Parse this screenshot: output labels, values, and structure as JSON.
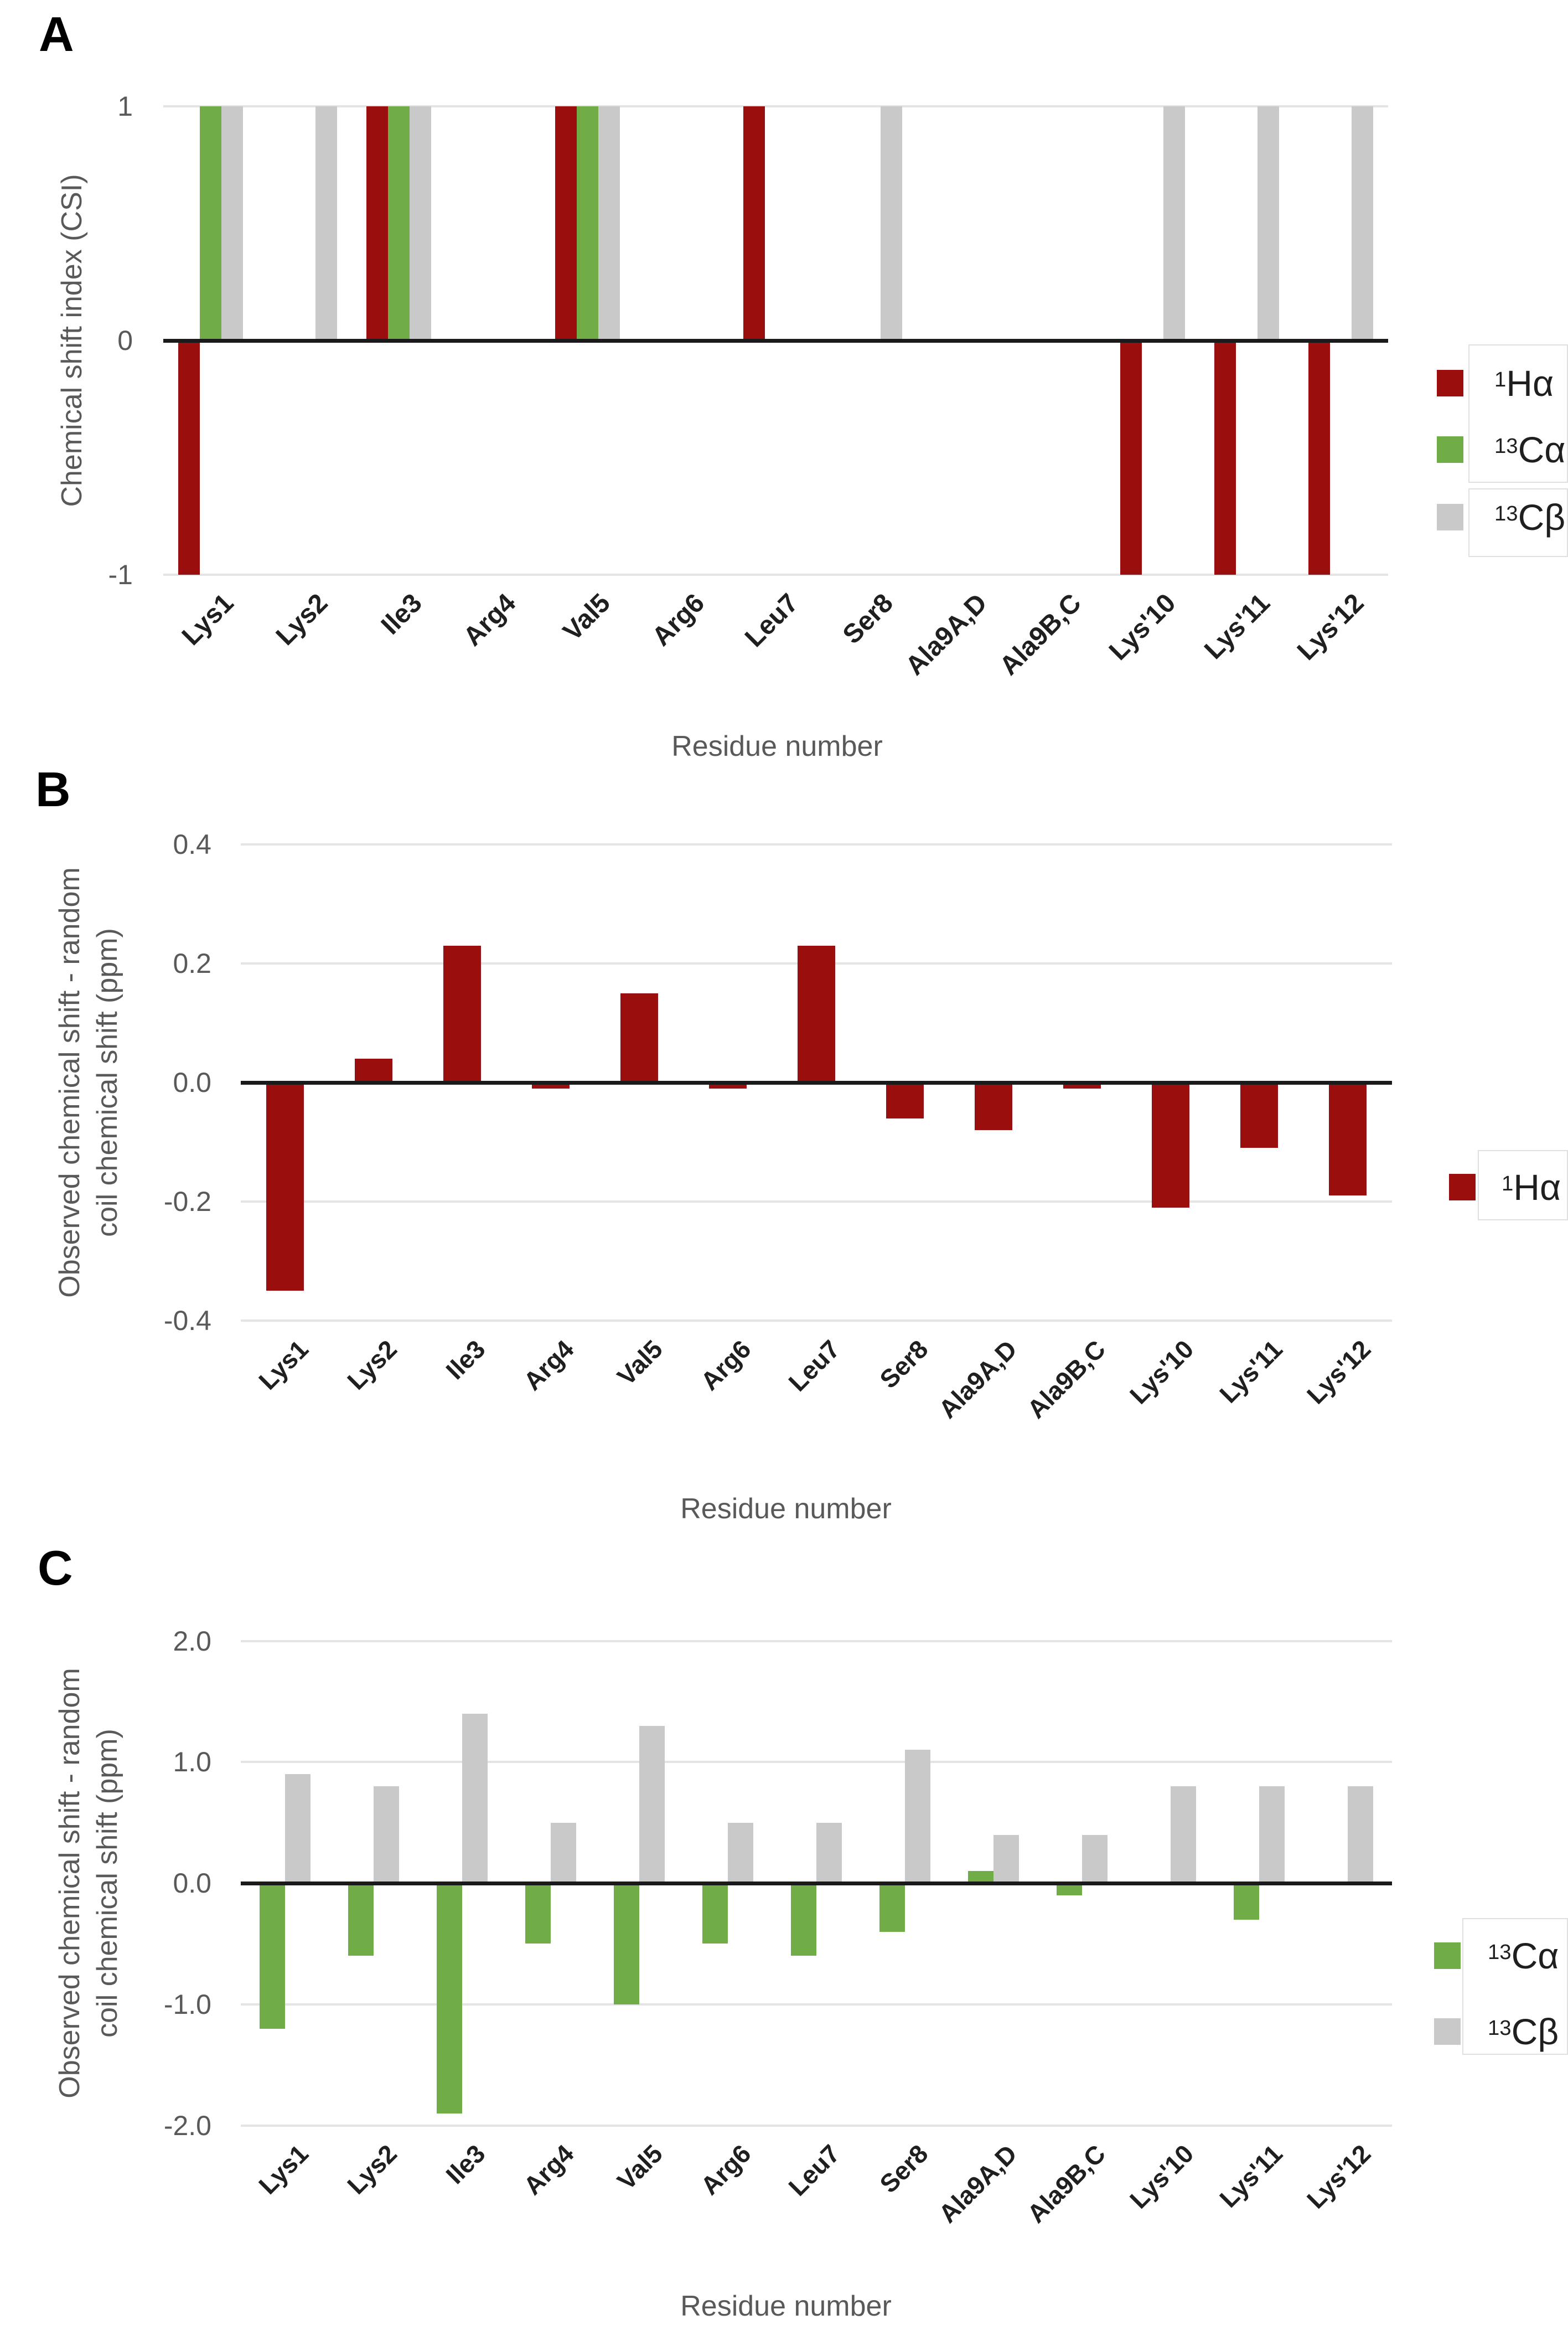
{
  "figure": {
    "panels": [
      {
        "label": "A",
        "y_title_lines": [
          "Chemical shift index (CSI)"
        ],
        "x_title": "Residue number",
        "legend": [
          {
            "sup": "1",
            "text": "Hα",
            "color": "#9a0e0e"
          },
          {
            "sup": "13",
            "text": "Cα",
            "color": "#70ad47"
          },
          {
            "sup": "13",
            "text": "Cβ",
            "color": "#c9c9c9"
          }
        ]
      },
      {
        "label": "B",
        "y_title_lines": [
          "Observed chemical shift - random",
          "coil chemical shift (ppm)"
        ],
        "x_title": "Residue number",
        "legend": [
          {
            "sup": "1",
            "text": "Hα",
            "color": "#9a0e0e"
          }
        ]
      },
      {
        "label": "C",
        "y_title_lines": [
          "Observed chemical shift - random",
          "coil chemical shift (ppm)"
        ],
        "x_title": "Residue number",
        "legend": [
          {
            "sup": "13",
            "text": "Cα",
            "color": "#70ad47"
          },
          {
            "sup": "13",
            "text": "Cβ",
            "color": "#c9c9c9"
          }
        ]
      }
    ]
  },
  "colors": {
    "halpha": "#9a0e0e",
    "calpha": "#70ad47",
    "cbeta": "#c9c9c9",
    "gridline": "#e4e4e4",
    "zero_axis": "#1a1a1a",
    "axis_text": "#595959",
    "category_text": "#1f1f1f"
  },
  "chart_data": [
    {
      "id": "A",
      "type": "bar",
      "title": "",
      "xlabel": "Residue number",
      "ylabel": "Chemical shift index (CSI)",
      "categories": [
        "Lys1",
        "Lys2",
        "Ile3",
        "Arg4",
        "Val5",
        "Arg6",
        "Leu7",
        "Ser8",
        "Ala9A,D",
        "Ala9B,C",
        "Lys'10",
        "Lys'11",
        "Lys'12"
      ],
      "ylim": [
        -1,
        1
      ],
      "ytick_labels": [
        "1",
        "0",
        "-1"
      ],
      "grid": true,
      "legend_position": "right",
      "series": [
        {
          "name": "1Ha",
          "color": "#9a0e0e",
          "values": [
            -1,
            0,
            1,
            0,
            1,
            0,
            1,
            0,
            0,
            0,
            -1,
            -1,
            -1
          ]
        },
        {
          "name": "13Ca",
          "color": "#70ad47",
          "values": [
            1,
            0,
            1,
            0,
            1,
            0,
            0,
            0,
            0,
            0,
            0,
            0,
            0
          ]
        },
        {
          "name": "13Cb",
          "color": "#c9c9c9",
          "values": [
            1,
            1,
            1,
            0,
            1,
            0,
            0,
            1,
            0,
            0,
            1,
            1,
            1
          ]
        }
      ]
    },
    {
      "id": "B",
      "type": "bar",
      "title": "",
      "xlabel": "Residue number",
      "ylabel": "Observed chemical shift - random coil chemical shift (ppm)",
      "categories": [
        "Lys1",
        "Lys2",
        "Ile3",
        "Arg4",
        "Val5",
        "Arg6",
        "Leu7",
        "Ser8",
        "Ala9A,D",
        "Ala9B,C",
        "Lys'10",
        "Lys'11",
        "Lys'12"
      ],
      "ylim": [
        -0.4,
        0.4
      ],
      "ytick_labels": [
        "0.4",
        "0.2",
        "0.0",
        "-0.2",
        "-0.4"
      ],
      "grid": true,
      "legend_position": "right",
      "series": [
        {
          "name": "1Ha",
          "color": "#9a0e0e",
          "values": [
            -0.35,
            0.04,
            0.23,
            -0.01,
            0.15,
            -0.01,
            0.23,
            -0.06,
            -0.08,
            -0.01,
            -0.21,
            -0.11,
            -0.19
          ]
        }
      ]
    },
    {
      "id": "C",
      "type": "bar",
      "title": "",
      "xlabel": "Residue number",
      "ylabel": "Observed chemical shift - random coil chemical shift (ppm)",
      "categories": [
        "Lys1",
        "Lys2",
        "Ile3",
        "Arg4",
        "Val5",
        "Arg6",
        "Leu7",
        "Ser8",
        "Ala9A,D",
        "Ala9B,C",
        "Lys'10",
        "Lys'11",
        "Lys'12"
      ],
      "ylim": [
        -2.0,
        2.0
      ],
      "ytick_labels": [
        "2.0",
        "1.0",
        "0.0",
        "-1.0",
        "-2.0"
      ],
      "grid": true,
      "legend_position": "right",
      "series": [
        {
          "name": "13Ca",
          "color": "#70ad47",
          "values": [
            -1.2,
            -0.6,
            -1.9,
            -0.5,
            -1.0,
            -0.5,
            -0.6,
            -0.4,
            0.1,
            -0.1,
            0,
            -0.3,
            0
          ]
        },
        {
          "name": "13Cb",
          "color": "#c9c9c9",
          "values": [
            0.9,
            0.8,
            1.4,
            0.5,
            1.3,
            0.5,
            0.5,
            1.1,
            0.4,
            0.4,
            0.8,
            0.8,
            0.8
          ]
        }
      ]
    }
  ]
}
